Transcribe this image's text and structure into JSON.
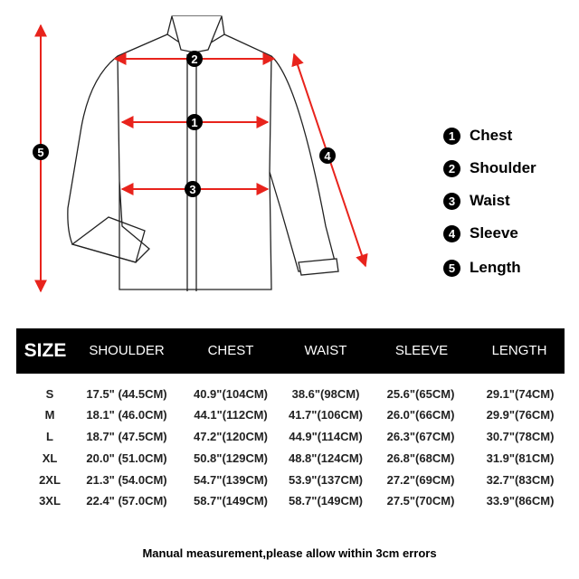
{
  "diagram": {
    "markers": [
      "1",
      "2",
      "3",
      "4",
      "5"
    ],
    "arrow_color": "#e8231c"
  },
  "legend": [
    {
      "num": "1",
      "label": "Chest"
    },
    {
      "num": "2",
      "label": "Shoulder"
    },
    {
      "num": "3",
      "label": "Waist"
    },
    {
      "num": "4",
      "label": "Sleeve"
    },
    {
      "num": "5",
      "label": "Length"
    }
  ],
  "table": {
    "headers": [
      "SIZE",
      "SHOULDER",
      "CHEST",
      "WAIST",
      "SLEEVE",
      "LENGTH"
    ],
    "rows": [
      [
        "S",
        "17.5\" (44.5CM)",
        "40.9\"(104CM)",
        "38.6\"(98CM)",
        "25.6\"(65CM)",
        "29.1\"(74CM)"
      ],
      [
        "M",
        "18.1\" (46.0CM)",
        "44.1\"(112CM)",
        "41.7\"(106CM)",
        "26.0\"(66CM)",
        "29.9\"(76CM)"
      ],
      [
        "L",
        "18.7\" (47.5CM)",
        "47.2\"(120CM)",
        "44.9\"(114CM)",
        "26.3\"(67CM)",
        "30.7\"(78CM)"
      ],
      [
        "XL",
        "20.0\" (51.0CM)",
        "50.8\"(129CM)",
        "48.8\"(124CM)",
        "26.8\"(68CM)",
        "31.9\"(81CM)"
      ],
      [
        "2XL",
        "21.3\" (54.0CM)",
        "54.7\"(139CM)",
        "53.9\"(137CM)",
        "27.2\"(69CM)",
        "32.7\"(83CM)"
      ],
      [
        "3XL",
        "22.4\" (57.0CM)",
        "58.7\"(149CM)",
        "58.7\"(149CM)",
        "27.5\"(70CM)",
        "33.9\"(86CM)"
      ]
    ]
  },
  "note": "Manual measurement,please allow within 3cm errors"
}
